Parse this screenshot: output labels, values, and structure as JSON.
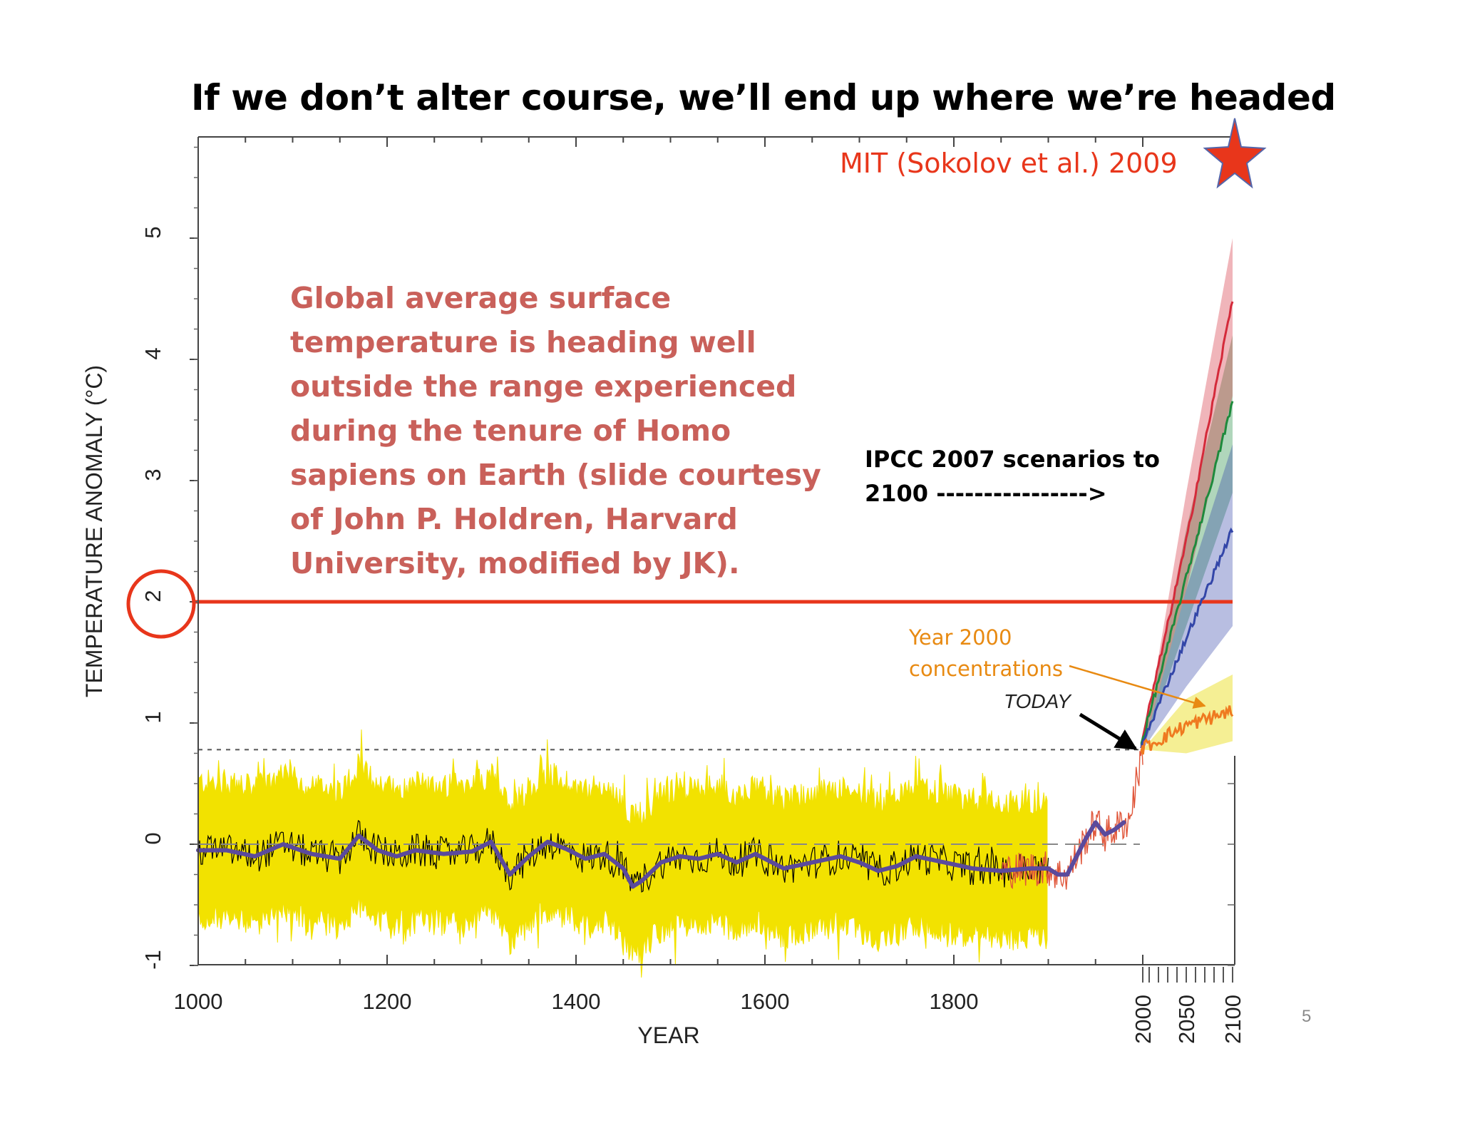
{
  "slide": {
    "title": "If we don’t alter course, we’ll end up where we’re headed",
    "page_number": "5"
  },
  "chart_data": {
    "type": "line",
    "xlabel": "YEAR",
    "ylabel": "TEMPERATURE ANOMALY (°C)",
    "xlim": [
      1000,
      2100
    ],
    "ylim": [
      -1,
      6
    ],
    "x_ticks": [
      "1000",
      "1200",
      "1400",
      "1600",
      "1800"
    ],
    "x_ticks_future": [
      "2000",
      "2050",
      "2100"
    ],
    "y_ticks": [
      "-1",
      "0",
      "1",
      "2",
      "3",
      "4",
      "5"
    ],
    "annotations": {
      "source": "MIT (Sokolov et al.) 2009",
      "main_text": [
        "Global average surface",
        "temperature is heading well",
        "outside the range experienced",
        "during the tenure of Homo",
        "sapiens on Earth (slide courtesy",
        "of John P. Holdren, Harvard",
        "University, modified by JK)."
      ],
      "ipcc": [
        "IPCC 2007 scenarios to",
        "2100 ---------------->"
      ],
      "year2000": [
        "Year 2000",
        "concentrations"
      ],
      "today": "TODAY"
    },
    "reference_lines": {
      "two_degree": 2,
      "today_level": 0.78,
      "baseline": 0
    },
    "colors": {
      "proxy_band": "#f2e200",
      "instrumental": "#000000",
      "smoothed": "#5b4a9c",
      "recent_obs": "#e0563a",
      "threshold": "#e8361b",
      "source_text": "#e8361b",
      "main_text": "#c9605a",
      "year2000_text": "#e88a12",
      "scenario_red": "#d42a3a",
      "scenario_green": "#1e8a3c",
      "scenario_blue": "#3346a8"
    },
    "smoothed_series": {
      "name": "",
      "x": [
        1000,
        1030,
        1060,
        1090,
        1120,
        1150,
        1170,
        1190,
        1210,
        1230,
        1260,
        1290,
        1310,
        1330,
        1350,
        1370,
        1390,
        1410,
        1430,
        1450,
        1460,
        1470,
        1490,
        1510,
        1530,
        1550,
        1570,
        1590,
        1620,
        1650,
        1680,
        1700,
        1720,
        1740,
        1760,
        1790,
        1820,
        1850,
        1880,
        1900,
        1910,
        1920,
        1940,
        1950,
        1960,
        1970,
        1980
      ],
      "y": [
        -0.05,
        -0.05,
        -0.1,
        0,
        -0.08,
        -0.12,
        0.07,
        -0.05,
        -0.1,
        -0.05,
        -0.08,
        -0.06,
        0.02,
        -0.25,
        -0.1,
        0.02,
        -0.04,
        -0.12,
        -0.08,
        -0.2,
        -0.35,
        -0.3,
        -0.15,
        -0.1,
        -0.12,
        -0.08,
        -0.15,
        -0.08,
        -0.2,
        -0.15,
        -0.1,
        -0.15,
        -0.22,
        -0.18,
        -0.1,
        -0.15,
        -0.2,
        -0.22,
        -0.2,
        -0.2,
        -0.25,
        -0.25,
        0.05,
        0.18,
        0.08,
        0.12,
        0.18
      ]
    },
    "scenarios": [
      {
        "name": "",
        "x": [
          2000,
          2050,
          2100
        ],
        "y": [
          0.78,
          2.5,
          4.5
        ],
        "low": [
          0.78,
          2.1,
          3.7
        ],
        "high": [
          0.78,
          2.9,
          5.0
        ]
      },
      {
        "name": "",
        "x": [
          2000,
          2050,
          2100
        ],
        "y": [
          0.78,
          2.2,
          3.65
        ],
        "low": [
          0.78,
          1.8,
          2.9
        ],
        "high": [
          0.78,
          2.6,
          4.2
        ]
      },
      {
        "name": "",
        "x": [
          2000,
          2050,
          2100
        ],
        "y": [
          0.78,
          1.7,
          2.6
        ],
        "low": [
          0.78,
          1.3,
          1.8
        ],
        "high": [
          0.78,
          2.1,
          3.3
        ]
      },
      {
        "name": "",
        "x": [
          2000,
          2050,
          2100
        ],
        "y": [
          0.78,
          0.98,
          1.1
        ],
        "low": [
          0.78,
          0.75,
          0.85
        ],
        "high": [
          0.78,
          1.2,
          1.4
        ]
      }
    ]
  }
}
